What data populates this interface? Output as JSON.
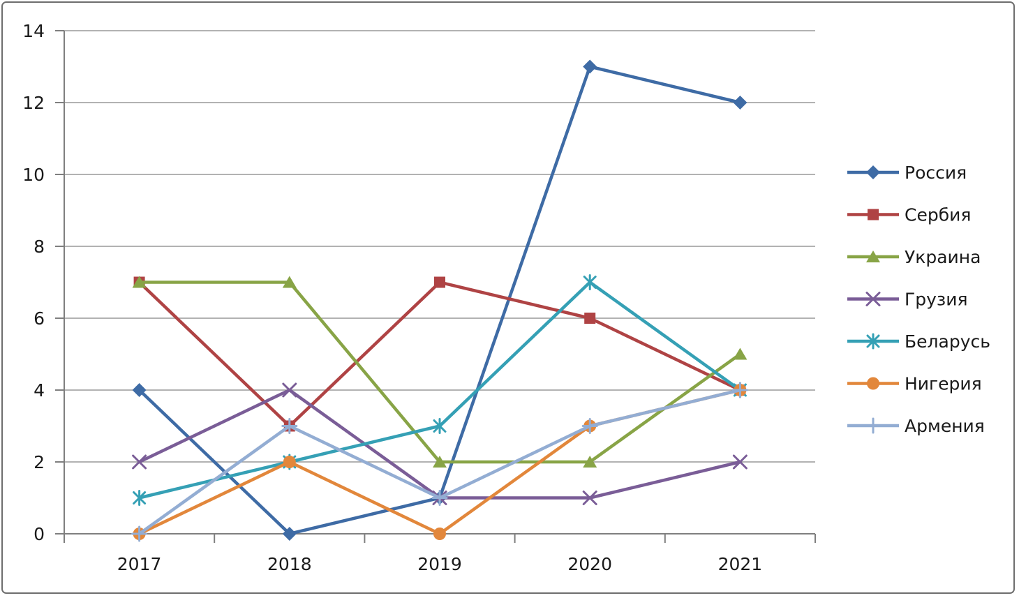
{
  "chart_data": {
    "type": "line",
    "title": "",
    "xlabel": "",
    "ylabel": "",
    "categories": [
      "2017",
      "2018",
      "2019",
      "2020",
      "2021"
    ],
    "series": [
      {
        "name": "Россия",
        "color": "#3e6ba5",
        "marker": "diamond",
        "values": [
          4,
          0,
          1,
          13,
          12
        ]
      },
      {
        "name": "Сербия",
        "color": "#af4344",
        "marker": "square",
        "values": [
          7,
          3,
          7,
          6,
          4
        ]
      },
      {
        "name": "Украина",
        "color": "#88a446",
        "marker": "triangle",
        "values": [
          7,
          7,
          2,
          2,
          5
        ]
      },
      {
        "name": "Грузия",
        "color": "#7a5d97",
        "marker": "x",
        "values": [
          2,
          4,
          1,
          1,
          2
        ]
      },
      {
        "name": "Беларусь",
        "color": "#35a0b5",
        "marker": "asterisk",
        "values": [
          1,
          2,
          3,
          7,
          4
        ]
      },
      {
        "name": "Нигерия",
        "color": "#e2873b",
        "marker": "circle",
        "values": [
          0,
          2,
          0,
          3,
          4
        ]
      },
      {
        "name": "Армения",
        "color": "#93add3",
        "marker": "plus",
        "values": [
          0,
          3,
          1,
          3,
          4
        ]
      }
    ],
    "ylim": [
      0,
      14
    ],
    "yticks": [
      0,
      2,
      4,
      6,
      8,
      10,
      12,
      14
    ],
    "grid": true,
    "legend_position": "right"
  }
}
